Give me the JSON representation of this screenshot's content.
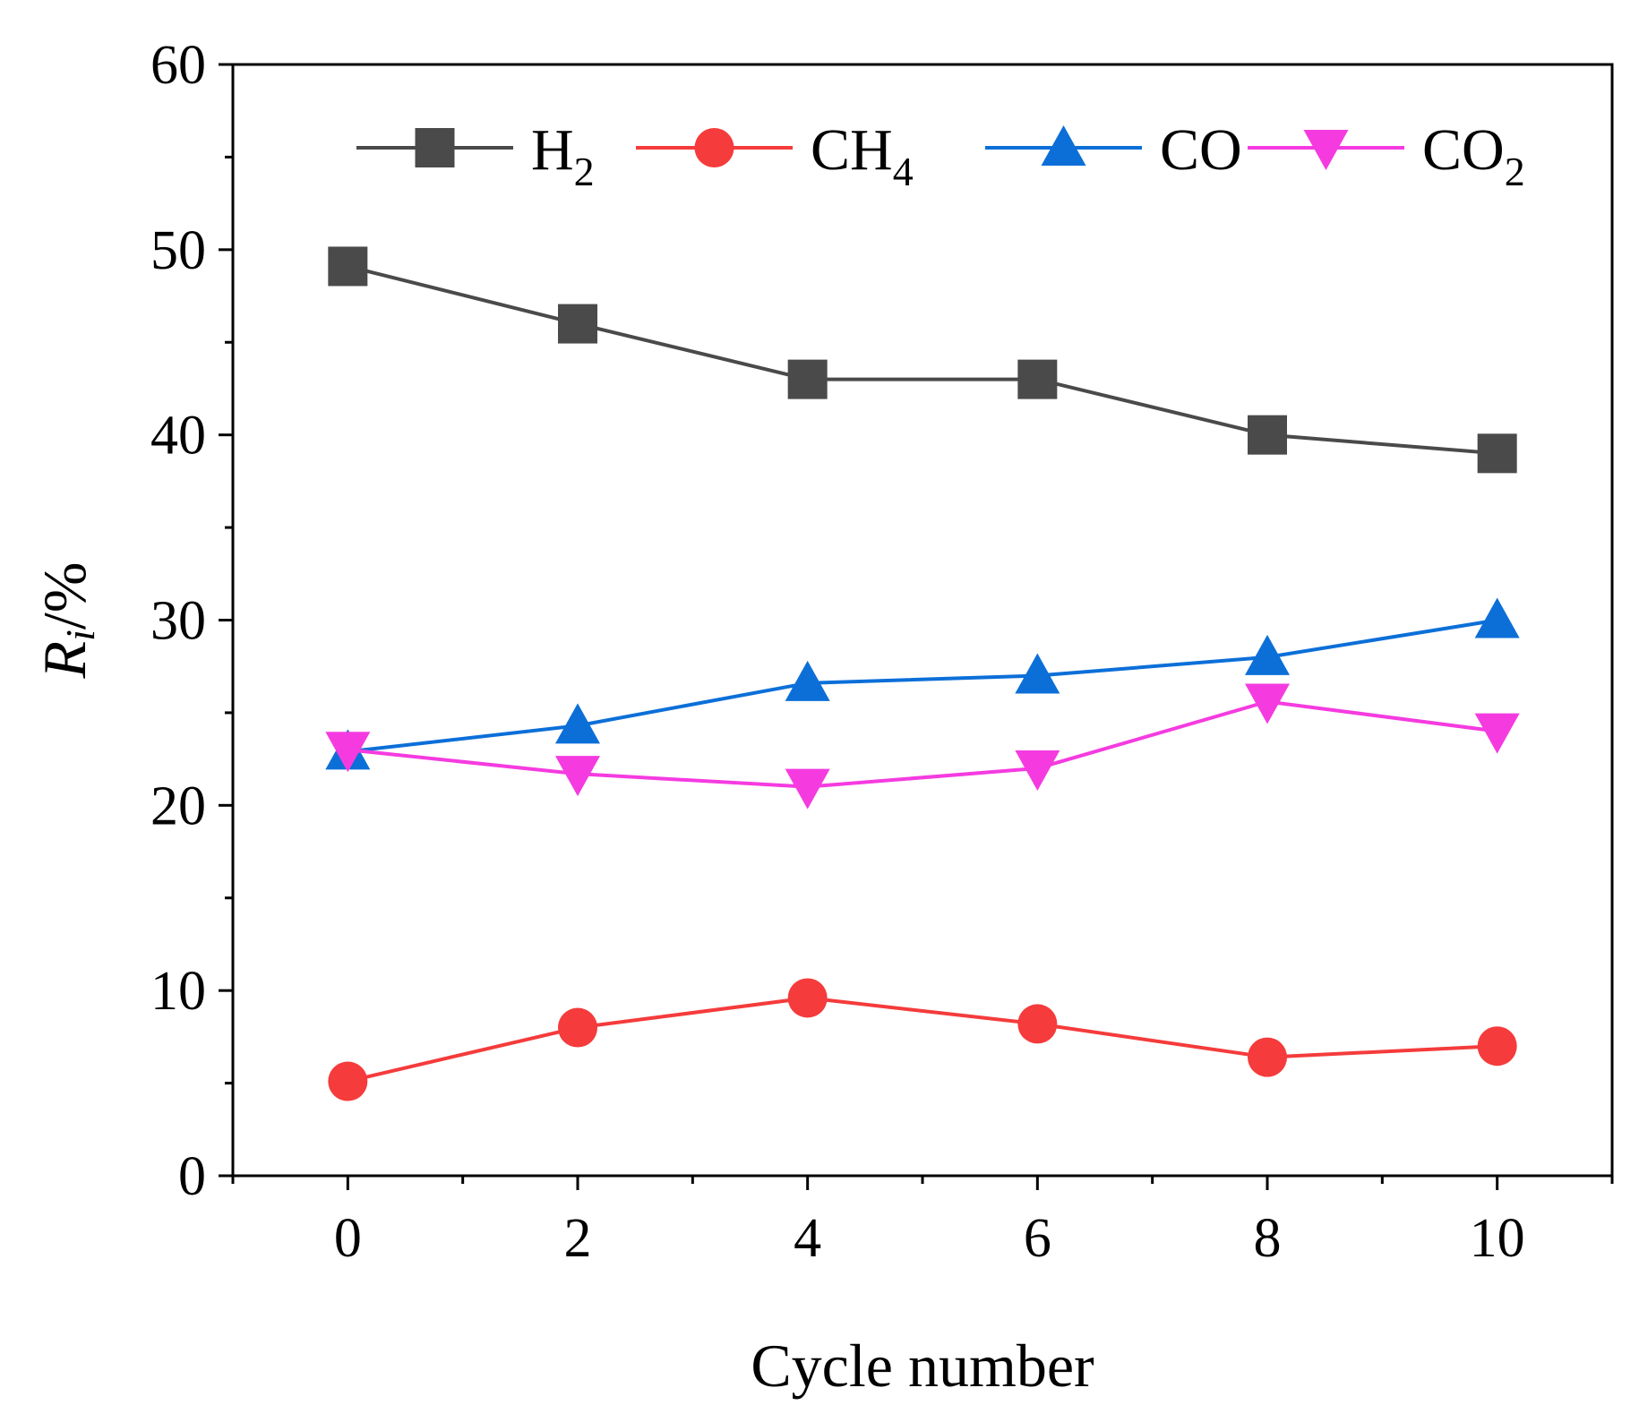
{
  "chart_data": {
    "type": "line",
    "title": "",
    "xlabel": "Cycle number",
    "ylabel": {
      "main": "R",
      "subscript": "i",
      "suffix": "/%"
    },
    "xlim": [
      -1,
      11
    ],
    "ylim": [
      0,
      60
    ],
    "x_ticks": [
      0,
      2,
      4,
      6,
      8,
      10
    ],
    "x_minor_ticks": [
      -1,
      1,
      3,
      5,
      7,
      9,
      11
    ],
    "y_ticks": [
      0,
      10,
      20,
      30,
      40,
      50,
      60
    ],
    "y_minor_ticks": [
      5,
      15,
      25,
      35,
      45,
      55
    ],
    "grid": false,
    "legend": {
      "position": "top",
      "entries": [
        {
          "name": "H",
          "sub": "2"
        },
        {
          "name": "CH",
          "sub": "4"
        },
        {
          "name": "CO",
          "sub": ""
        },
        {
          "name": "CO",
          "sub": "2"
        }
      ]
    },
    "x": [
      0,
      2,
      4,
      6,
      8,
      10
    ],
    "series": [
      {
        "name": "H2",
        "marker": "square",
        "color": "#4a4a4a",
        "values": [
          49.1,
          46.0,
          43.0,
          43.0,
          40.0,
          39.0
        ]
      },
      {
        "name": "CH4",
        "marker": "circle",
        "color": "#f53b3b",
        "values": [
          5.1,
          8.0,
          9.6,
          8.2,
          6.4,
          7.0
        ]
      },
      {
        "name": "CO",
        "marker": "triangle-up",
        "color": "#0c6fd8",
        "values": [
          22.9,
          24.3,
          26.6,
          27.0,
          28.0,
          30.0
        ]
      },
      {
        "name": "CO2",
        "marker": "triangle-down",
        "color": "#f53be0",
        "values": [
          23.0,
          21.7,
          21.0,
          22.0,
          25.6,
          24.0
        ]
      }
    ]
  }
}
